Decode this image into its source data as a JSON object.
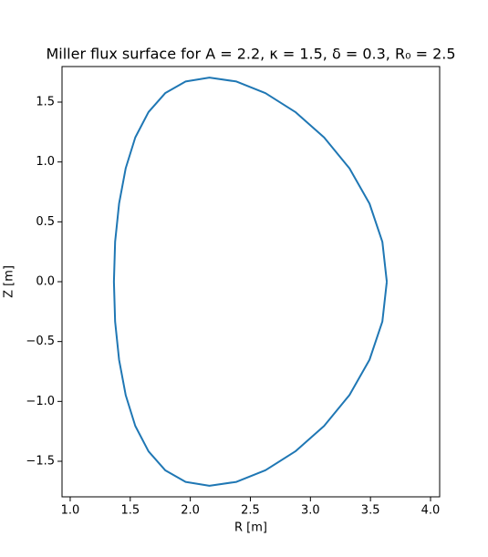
{
  "chart_data": {
    "type": "line",
    "title": "Miller flux surface for A = 2.2, κ = 1.5, δ = 0.3, R₀ = 2.5",
    "xlabel": "R [m]",
    "ylabel": "Z [m]",
    "color": "#1f77b4",
    "x": [
      3.636,
      3.599,
      3.492,
      3.325,
      3.114,
      2.875,
      2.626,
      2.384,
      2.159,
      1.961,
      1.791,
      1.652,
      1.542,
      1.462,
      1.407,
      1.374,
      1.364,
      1.374,
      1.407,
      1.462,
      1.542,
      1.652,
      1.791,
      1.961,
      2.159,
      2.384,
      2.626,
      2.875,
      3.114,
      3.325,
      3.492,
      3.599,
      3.636
    ],
    "values": [
      0,
      0.333,
      0.652,
      0.947,
      1.205,
      1.417,
      1.575,
      1.672,
      1.705,
      1.672,
      1.575,
      1.417,
      1.205,
      0.947,
      0.652,
      0.333,
      0,
      -0.333,
      -0.652,
      -0.947,
      -1.205,
      -1.417,
      -1.575,
      -1.672,
      -1.705,
      -1.672,
      -1.575,
      -1.417,
      -1.205,
      -0.947,
      -0.652,
      -0.333,
      0
    ],
    "xlim": [
      0.932,
      4.076
    ],
    "ylim": [
      -1.797,
      1.797
    ],
    "xticks": [
      {
        "value": 1,
        "label": "1.0"
      },
      {
        "value": 1.5,
        "label": "1.5"
      },
      {
        "value": 2,
        "label": "2.0"
      },
      {
        "value": 2.5,
        "label": "2.5"
      },
      {
        "value": 3,
        "label": "3.0"
      },
      {
        "value": 3.5,
        "label": "3.5"
      },
      {
        "value": 4,
        "label": "4.0"
      }
    ],
    "yticks": [
      {
        "value": -1.5,
        "label": "−1.5"
      },
      {
        "value": -1,
        "label": "−1.0"
      },
      {
        "value": -0.5,
        "label": "−0.5"
      },
      {
        "value": 0,
        "label": "0.0"
      },
      {
        "value": 0.5,
        "label": "0.5"
      },
      {
        "value": 1,
        "label": "1.0"
      },
      {
        "value": 1.5,
        "label": "1.5"
      }
    ]
  }
}
